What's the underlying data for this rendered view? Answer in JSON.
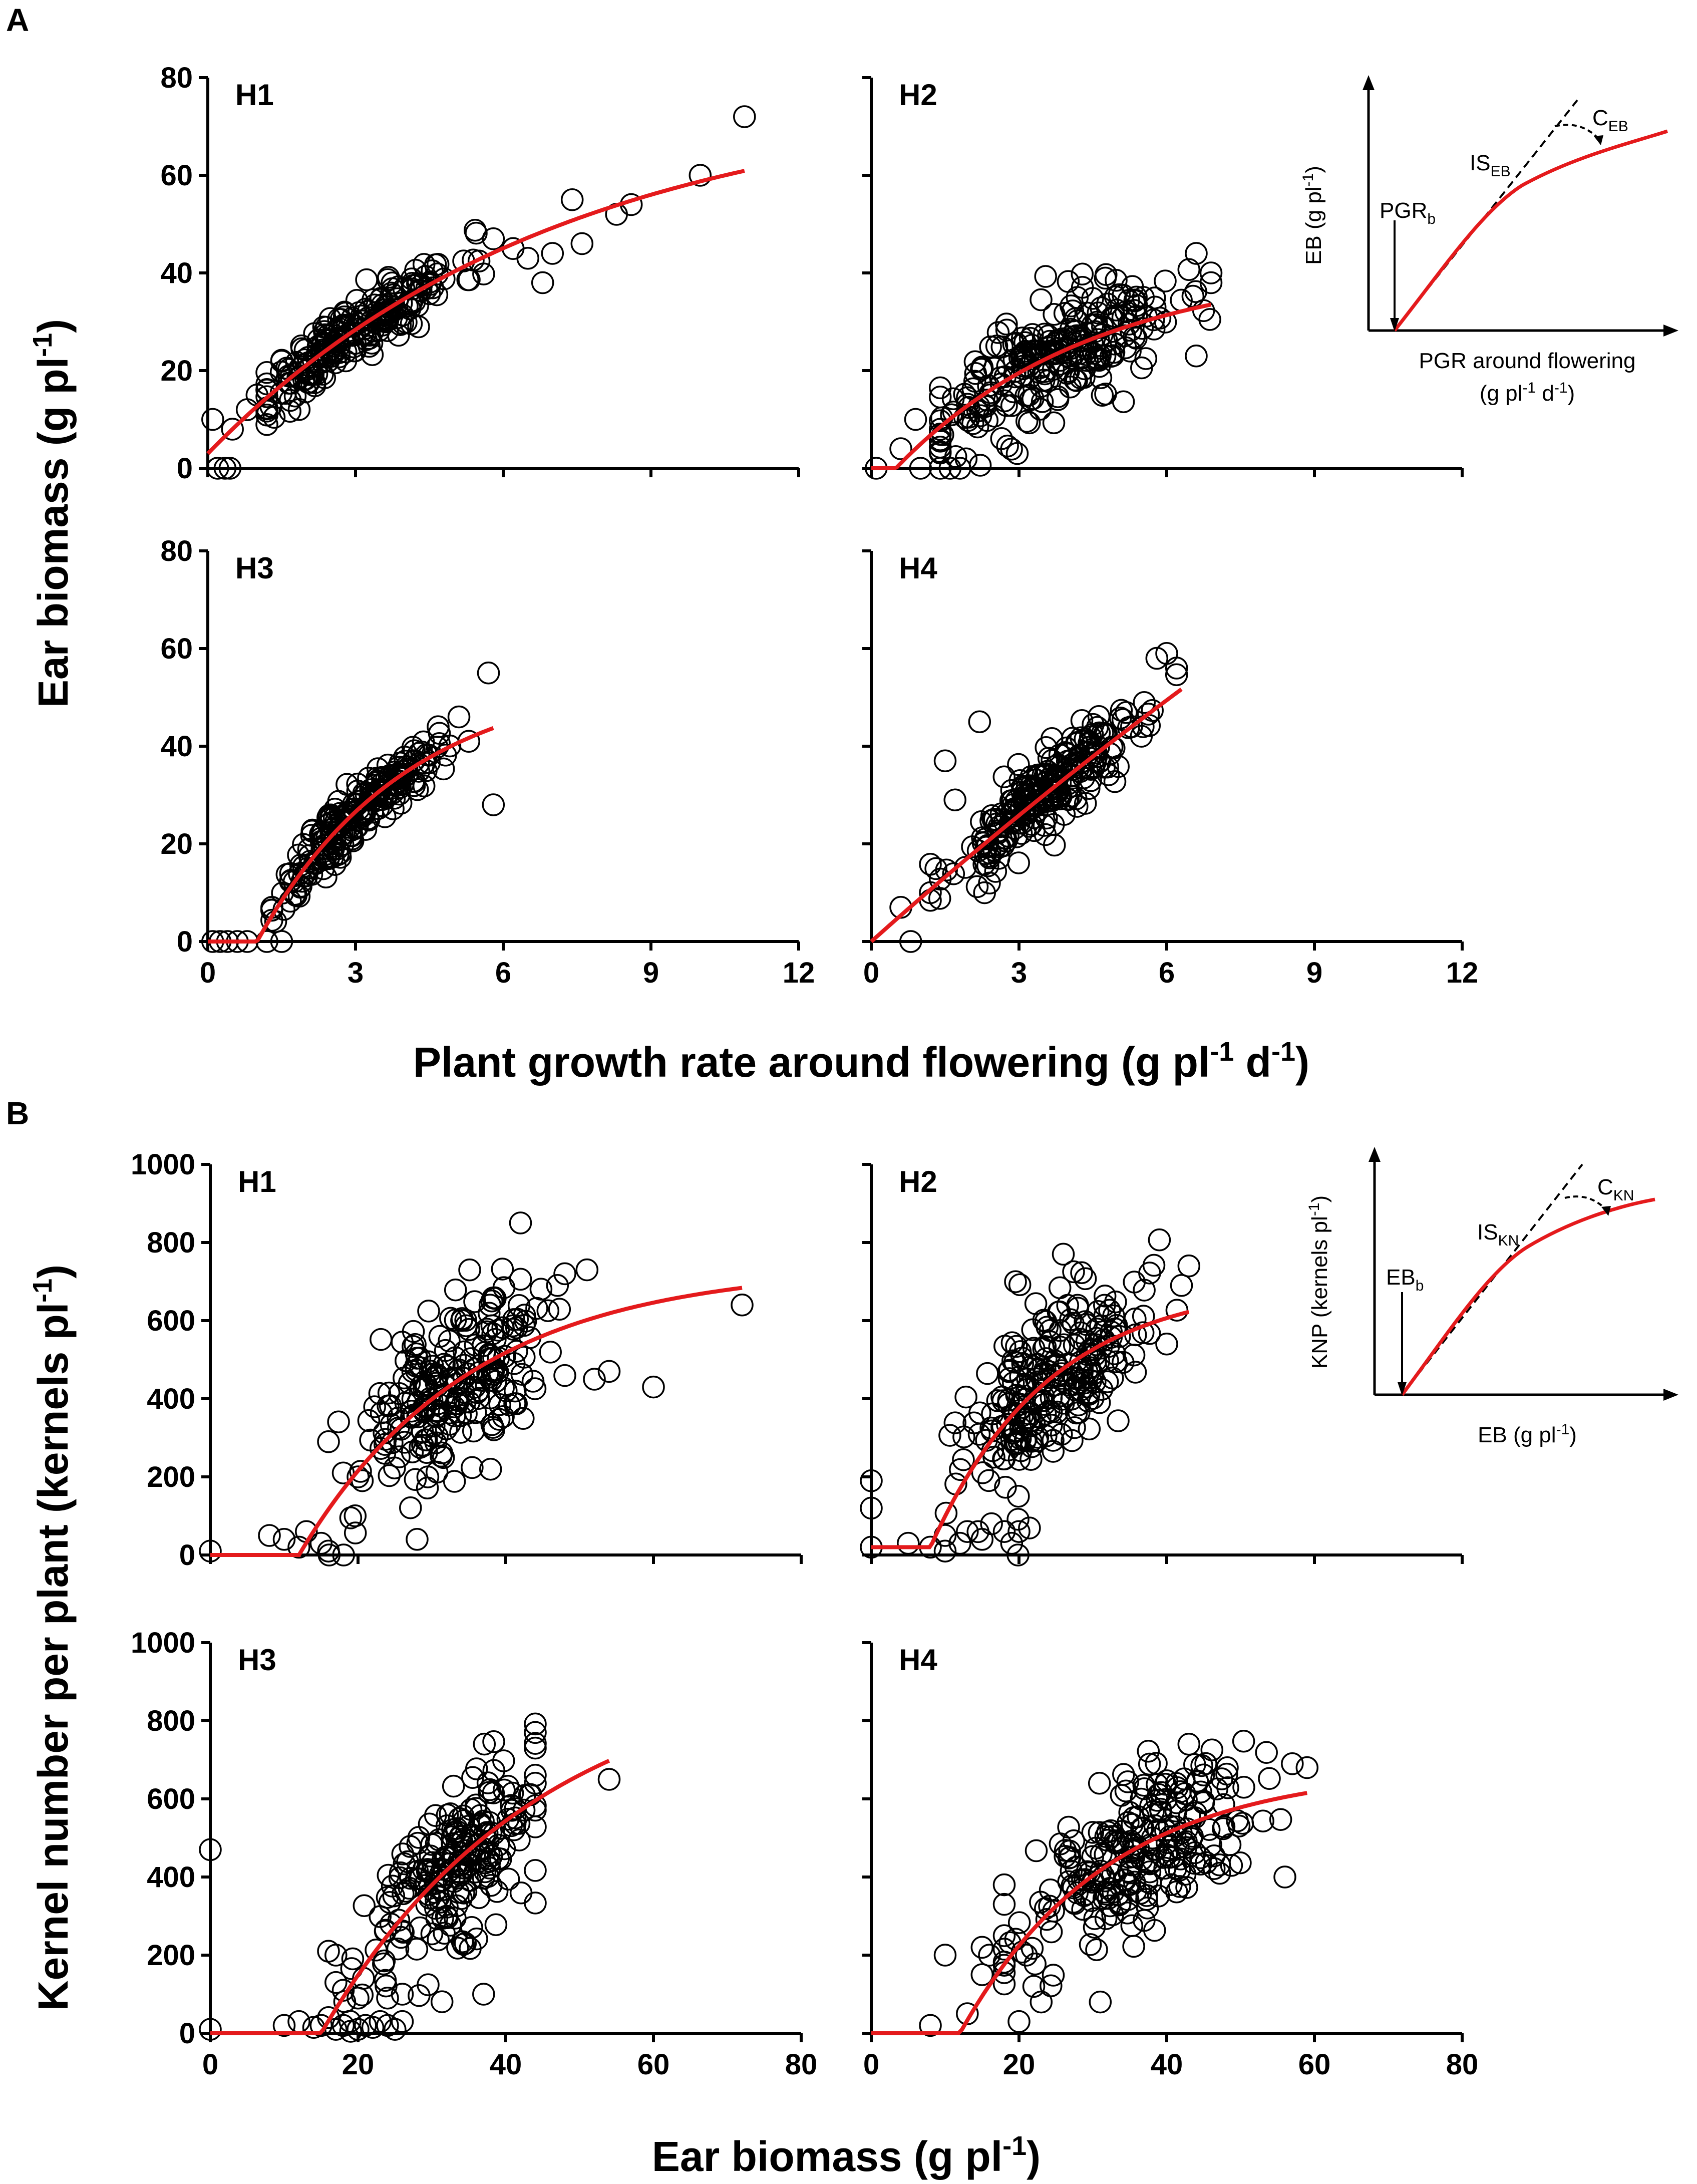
{
  "figure": {
    "section_a_label": "A",
    "section_b_label": "B"
  },
  "section_a": {
    "y_title": "Ear biomass (g pl",
    "y_title_sup": "-1",
    "y_title_end": ")",
    "x_title_parts": [
      "Plant growth rate around flowering (g pl",
      "-1",
      " d",
      "-1",
      ")"
    ],
    "inset": {
      "y_label": "EB (g pl",
      "y_sup": "-1",
      "y_end": ")",
      "x_label_line1": "PGR around  flowering",
      "x_label_line2": "(g pl",
      "x_label_sup1": "-1",
      "x_label_mid": " d",
      "x_label_sup2": "-1",
      "x_label_end": ")",
      "threshold": "PGR",
      "threshold_sub": "b",
      "slope": "IS",
      "slope_sub": "EB",
      "curvature": "C",
      "curvature_sub": "EB"
    }
  },
  "section_b": {
    "y_title": "Kernel number per plant (kernels pl",
    "y_title_sup": "-1",
    "y_title_end": ")",
    "x_title": "Ear biomass (g pl",
    "x_title_sup": "-1",
    "x_title_end": ")",
    "inset": {
      "y_label": "KNP (kernels pl",
      "y_sup": "-1",
      "y_end": ")",
      "x_label": "EB (g pl",
      "x_sup": "-1",
      "x_end": ")",
      "threshold": "EB",
      "threshold_sub": "b",
      "slope": "IS",
      "slope_sub": "KN",
      "curvature": "C",
      "curvature_sub": "KN"
    }
  },
  "chart_data": [
    {
      "type": "scatter",
      "panel": "A",
      "title": "H1",
      "xlabel": "Plant growth rate around flowering (g pl-1 d-1)",
      "ylabel": "Ear biomass (g pl-1)",
      "xlim": [
        0,
        12
      ],
      "ylim": [
        0,
        80
      ],
      "xticks": [
        0,
        3,
        6,
        9,
        12
      ],
      "yticks": [
        0,
        20,
        40,
        60,
        80
      ],
      "show_x_tick_labels": false,
      "show_y_tick_labels": true,
      "fit": {
        "model": "saturating_exponential",
        "threshold": 0.0,
        "amplitude": 74,
        "k": 0.14,
        "offset": 3,
        "x_end": 10.9
      },
      "cloud": {
        "n": 230,
        "seed": 11,
        "x_mean": 3.0,
        "x_sd": 1.05,
        "x_min": 1.2,
        "x_max": 5.8,
        "noise_sd": 3.2
      },
      "points": [
        [
          0.1,
          10
        ],
        [
          0.2,
          0
        ],
        [
          0.35,
          0
        ],
        [
          0.45,
          0
        ],
        [
          0.5,
          8
        ],
        [
          0.8,
          12
        ],
        [
          1.0,
          15
        ],
        [
          7.4,
          55
        ],
        [
          7.0,
          44
        ],
        [
          7.6,
          46
        ],
        [
          8.3,
          52
        ],
        [
          8.6,
          54
        ],
        [
          10.0,
          60
        ],
        [
          10.9,
          72
        ],
        [
          6.5,
          43
        ],
        [
          6.8,
          38
        ],
        [
          5.8,
          47
        ],
        [
          6.2,
          45
        ]
      ]
    },
    {
      "type": "scatter",
      "panel": "A",
      "title": "H2",
      "xlabel": "Plant growth rate around flowering (g pl-1 d-1)",
      "ylabel": "Ear biomass (g pl-1)",
      "xlim": [
        0,
        12
      ],
      "ylim": [
        0,
        80
      ],
      "xticks": [
        0,
        3,
        6,
        9,
        12
      ],
      "yticks": [
        0,
        20,
        40,
        60,
        80
      ],
      "show_x_tick_labels": false,
      "show_y_tick_labels": false,
      "fit": {
        "model": "saturating_exponential",
        "threshold": 0.5,
        "amplitude": 42,
        "k": 0.25,
        "offset": 0,
        "x_end": 6.9
      },
      "cloud": {
        "n": 250,
        "seed": 23,
        "x_mean": 3.6,
        "x_sd": 1.3,
        "x_min": 1.4,
        "x_max": 6.9,
        "noise_sd": 5.5
      },
      "points": [
        [
          0.1,
          0
        ],
        [
          0.6,
          4
        ],
        [
          0.9,
          10
        ],
        [
          1.0,
          0
        ],
        [
          1.4,
          0
        ],
        [
          1.6,
          0
        ],
        [
          1.8,
          0
        ],
        [
          6.6,
          44
        ],
        [
          6.9,
          38
        ],
        [
          6.9,
          40
        ],
        [
          6.6,
          23
        ]
      ]
    },
    {
      "type": "scatter",
      "panel": "A",
      "title": "H3",
      "xlabel": "Plant growth rate around flowering (g pl-1 d-1)",
      "ylabel": "Ear biomass (g pl-1)",
      "xlim": [
        0,
        12
      ],
      "ylim": [
        0,
        80
      ],
      "xticks": [
        0,
        3,
        6,
        9,
        12
      ],
      "yticks": [
        0,
        20,
        40,
        60,
        80
      ],
      "show_x_tick_labels": true,
      "show_y_tick_labels": true,
      "fit": {
        "model": "saturating_exponential",
        "threshold": 1.0,
        "amplitude": 55,
        "k": 0.33,
        "offset": 0,
        "x_end": 5.8
      },
      "cloud": {
        "n": 220,
        "seed": 37,
        "x_mean": 3.0,
        "x_sd": 0.8,
        "x_min": 1.3,
        "x_max": 5.2,
        "noise_sd": 3.0
      },
      "points": [
        [
          0.1,
          0
        ],
        [
          0.25,
          0
        ],
        [
          0.4,
          0
        ],
        [
          0.6,
          0
        ],
        [
          0.8,
          0
        ],
        [
          1.2,
          0
        ],
        [
          1.5,
          0
        ],
        [
          5.7,
          55
        ],
        [
          5.8,
          28
        ],
        [
          5.3,
          41
        ],
        [
          5.1,
          46
        ]
      ]
    },
    {
      "type": "scatter",
      "panel": "A",
      "title": "H4",
      "xlabel": "Plant growth rate around flowering (g pl-1 d-1)",
      "ylabel": "Ear biomass (g pl-1)",
      "xlim": [
        0,
        12
      ],
      "ylim": [
        0,
        80
      ],
      "xticks": [
        0,
        3,
        6,
        9,
        12
      ],
      "yticks": [
        0,
        20,
        40,
        60,
        80
      ],
      "show_x_tick_labels": true,
      "show_y_tick_labels": false,
      "fit": {
        "model": "saturating_exponential",
        "threshold": 0.0,
        "amplitude": 300,
        "k": 0.03,
        "offset": 0,
        "x_end": 6.3
      },
      "cloud": {
        "n": 240,
        "seed": 53,
        "x_mean": 3.6,
        "x_sd": 1.0,
        "x_min": 1.2,
        "x_max": 6.2,
        "noise_sd": 4.2
      },
      "points": [
        [
          0.6,
          7
        ],
        [
          0.8,
          0
        ],
        [
          1.2,
          10
        ],
        [
          1.5,
          37
        ],
        [
          1.7,
          29
        ],
        [
          2.2,
          45
        ],
        [
          6.0,
          59
        ],
        [
          6.2,
          56
        ],
        [
          5.8,
          58
        ]
      ]
    },
    {
      "type": "scatter",
      "panel": "B",
      "title": "H1",
      "xlabel": "Ear biomass (g pl-1)",
      "ylabel": "Kernel number per plant (kernels pl-1)",
      "xlim": [
        0,
        80
      ],
      "ylim": [
        0,
        1000
      ],
      "xticks": [
        0,
        20,
        40,
        60,
        80
      ],
      "yticks": [
        0,
        200,
        400,
        600,
        800,
        1000
      ],
      "show_x_tick_labels": false,
      "show_y_tick_labels": true,
      "fit": {
        "model": "saturating_exponential",
        "threshold": 12.0,
        "amplitude": 740,
        "k": 0.043,
        "offset": 0,
        "x_end": 72
      },
      "cloud": {
        "n": 230,
        "seed": 71,
        "x_mean": 33,
        "x_sd": 7,
        "x_min": 16,
        "x_max": 48,
        "noise_sd": 115
      },
      "points": [
        [
          0,
          10
        ],
        [
          8,
          50
        ],
        [
          10,
          40
        ],
        [
          12,
          20
        ],
        [
          13,
          60
        ],
        [
          15,
          30
        ],
        [
          16,
          10
        ],
        [
          16,
          290
        ],
        [
          18,
          210
        ],
        [
          20,
          200
        ],
        [
          28,
          40
        ],
        [
          42,
          850
        ],
        [
          48,
          720
        ],
        [
          52,
          450
        ],
        [
          54,
          470
        ],
        [
          60,
          430
        ],
        [
          72,
          640
        ],
        [
          51,
          730
        ],
        [
          47,
          690
        ]
      ]
    },
    {
      "type": "scatter",
      "panel": "B",
      "title": "H2",
      "xlabel": "Ear biomass (g pl-1)",
      "ylabel": "Kernel number per plant (kernels pl-1)",
      "xlim": [
        0,
        80
      ],
      "ylim": [
        0,
        1000
      ],
      "xticks": [
        0,
        20,
        40,
        60,
        80
      ],
      "yticks": [
        0,
        200,
        400,
        600,
        800,
        1000
      ],
      "show_x_tick_labels": false,
      "show_y_tick_labels": false,
      "fit": {
        "model": "saturating_exponential",
        "threshold": 8.0,
        "amplitude": 680,
        "k": 0.062,
        "offset": 20,
        "x_end": 43
      },
      "cloud": {
        "n": 240,
        "seed": 89,
        "x_mean": 25,
        "x_sd": 6,
        "x_min": 10,
        "x_max": 42,
        "noise_sd": 110
      },
      "points": [
        [
          0,
          190
        ],
        [
          0,
          120
        ],
        [
          0,
          20
        ],
        [
          5,
          30
        ],
        [
          8,
          20
        ],
        [
          10,
          10
        ],
        [
          10,
          50
        ],
        [
          12,
          30
        ],
        [
          13,
          60
        ],
        [
          15,
          40
        ],
        [
          18,
          60
        ],
        [
          19,
          30
        ],
        [
          20,
          60
        ],
        [
          43,
          740
        ],
        [
          26,
          770
        ],
        [
          42,
          690
        ],
        [
          40,
          540
        ]
      ]
    },
    {
      "type": "scatter",
      "panel": "B",
      "title": "H3",
      "xlabel": "Ear biomass (g pl-1)",
      "ylabel": "Kernel number per plant (kernels pl-1)",
      "xlim": [
        0,
        80
      ],
      "ylim": [
        0,
        1000
      ],
      "xticks": [
        0,
        20,
        40,
        60,
        80
      ],
      "yticks": [
        0,
        200,
        400,
        600,
        800,
        1000
      ],
      "show_x_tick_labels": true,
      "show_y_tick_labels": true,
      "fit": {
        "model": "saturating_exponential",
        "threshold": 15.0,
        "amplitude": 950,
        "k": 0.034,
        "offset": 0,
        "x_end": 54
      },
      "cloud": {
        "n": 220,
        "seed": 97,
        "x_mean": 32,
        "x_sd": 6.5,
        "x_min": 18,
        "x_max": 44,
        "noise_sd": 110
      },
      "points": [
        [
          0,
          470
        ],
        [
          0,
          10
        ],
        [
          10,
          20
        ],
        [
          12,
          30
        ],
        [
          14,
          15
        ],
        [
          15,
          20
        ],
        [
          16,
          40
        ],
        [
          17,
          10
        ],
        [
          18,
          20
        ],
        [
          19,
          5
        ],
        [
          20,
          10
        ],
        [
          21,
          20
        ],
        [
          22,
          15
        ],
        [
          23,
          30
        ],
        [
          24,
          20
        ],
        [
          25,
          10
        ],
        [
          26,
          30
        ],
        [
          17,
          130
        ],
        [
          16,
          210
        ],
        [
          17,
          200
        ],
        [
          18,
          110
        ],
        [
          20,
          90
        ],
        [
          24,
          90
        ],
        [
          26,
          100
        ],
        [
          54,
          650
        ],
        [
          44,
          730
        ],
        [
          37,
          100
        ]
      ]
    },
    {
      "type": "scatter",
      "panel": "B",
      "title": "H4",
      "xlabel": "Ear biomass (g pl-1)",
      "ylabel": "Kernel number per plant (kernels pl-1)",
      "xlim": [
        0,
        80
      ],
      "ylim": [
        0,
        1000
      ],
      "xticks": [
        0,
        20,
        40,
        60,
        80
      ],
      "yticks": [
        0,
        200,
        400,
        600,
        800,
        1000
      ],
      "show_x_tick_labels": true,
      "show_y_tick_labels": false,
      "fit": {
        "model": "saturating_exponential",
        "threshold": 12.0,
        "amplitude": 680,
        "k": 0.05,
        "offset": 0,
        "x_end": 59
      },
      "cloud": {
        "n": 240,
        "seed": 131,
        "x_mean": 35,
        "x_sd": 8,
        "x_min": 18,
        "x_max": 58,
        "noise_sd": 95
      },
      "points": [
        [
          8,
          20
        ],
        [
          10,
          200
        ],
        [
          13,
          50
        ],
        [
          15,
          150
        ],
        [
          15,
          220
        ],
        [
          16,
          200
        ],
        [
          18,
          380
        ],
        [
          18,
          330
        ],
        [
          20,
          30
        ],
        [
          21,
          200
        ],
        [
          22,
          120
        ],
        [
          23,
          80
        ],
        [
          31,
          80
        ],
        [
          56,
          400
        ],
        [
          57,
          690
        ],
        [
          59,
          680
        ],
        [
          43,
          740
        ]
      ]
    }
  ]
}
